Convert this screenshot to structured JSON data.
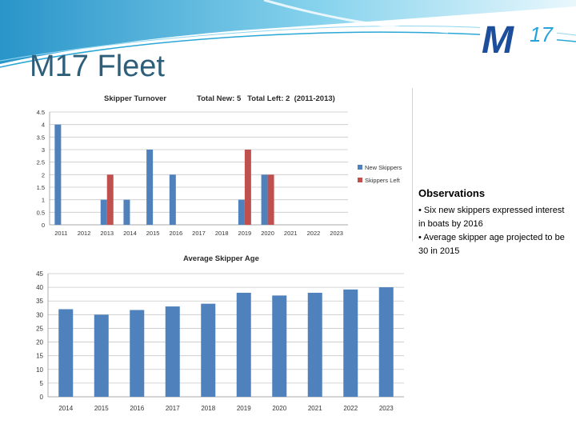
{
  "slide": {
    "title": "M17 Fleet",
    "logo": {
      "letter": "M",
      "number": "17",
      "colors": {
        "mark": "#1d4e9b",
        "number": "#27a3dc"
      }
    },
    "colors": {
      "title": "#2e5f7a",
      "swoosh": "#2aa7d6"
    }
  },
  "observations": {
    "heading": "Observations",
    "items": [
      "• Six new skippers expressed interest in boats by 2016",
      "• Average skipper age projected to be 30 in 2015"
    ]
  },
  "chart_data": [
    {
      "type": "bar",
      "title": "Skipper Turnover",
      "subtitle": "Total New: 5   Total Left: 2  (2011-2013)",
      "categories": [
        "2011",
        "2012",
        "2013",
        "2014",
        "2015",
        "2016",
        "2017",
        "2018",
        "2019",
        "2020",
        "2021",
        "2022",
        "2023"
      ],
      "series": [
        {
          "name": "New Skippers",
          "color": "#4f81bd",
          "values": [
            4,
            0,
            1,
            1,
            3,
            2,
            0,
            0,
            1,
            2,
            0,
            0,
            0
          ]
        },
        {
          "name": "Skippers Left",
          "color": "#c0504d",
          "values": [
            0,
            0,
            2,
            0,
            0,
            0,
            0,
            0,
            3,
            2,
            0,
            0,
            0
          ]
        }
      ],
      "ylim": [
        0,
        4.5
      ],
      "yticks": [
        "0",
        "0.5",
        "1",
        "1.5",
        "2",
        "2.5",
        "3",
        "3.5",
        "4",
        "4.5"
      ],
      "grid": true,
      "legend": "right"
    },
    {
      "type": "bar",
      "title": "Average Skipper Age",
      "categories": [
        "2014",
        "2015",
        "2016",
        "2017",
        "2018",
        "2019",
        "2020",
        "2021",
        "2022",
        "2023"
      ],
      "series": [
        {
          "color": "#4f81bd",
          "values": [
            32,
            30,
            31.7,
            33,
            34,
            38,
            37,
            38,
            39.2,
            40
          ]
        }
      ],
      "ylim": [
        0,
        45
      ],
      "yticks": [
        "0",
        "5",
        "10",
        "15",
        "20",
        "25",
        "30",
        "35",
        "40",
        "45"
      ],
      "grid": true,
      "legend": "none"
    }
  ]
}
